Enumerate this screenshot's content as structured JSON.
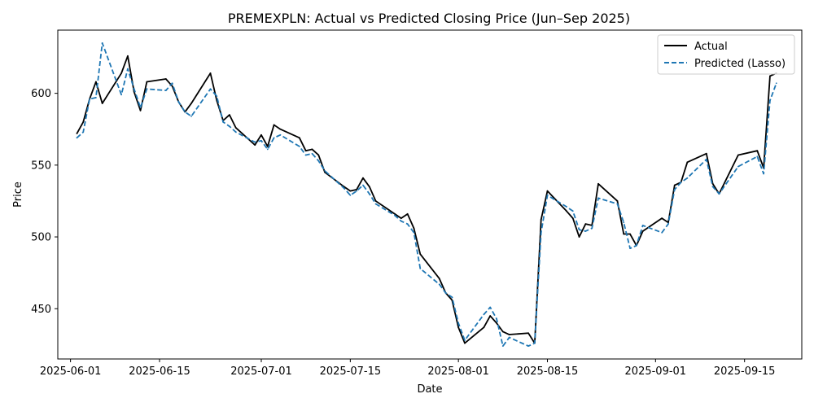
{
  "colors": {
    "actual": "#000000",
    "predicted": "#1f77b4",
    "axes": "#000000",
    "background": "#ffffff",
    "legend_border": "#cccccc"
  },
  "chart_data": {
    "type": "line",
    "title": "PREMEXPLN: Actual vs Predicted Closing Price (Jun–Sep 2025)",
    "xlabel": "Date",
    "ylabel": "Price",
    "xlim": [
      "2025-05-30",
      "2025-09-24"
    ],
    "ylim": [
      415,
      644
    ],
    "x_ticks": [
      "2025-06-01",
      "2025-06-15",
      "2025-07-01",
      "2025-07-15",
      "2025-08-01",
      "2025-08-15",
      "2025-09-01",
      "2025-09-15"
    ],
    "y_ticks": [
      450,
      500,
      550,
      600
    ],
    "grid": false,
    "legend": {
      "position": "top-right",
      "entries": [
        "Actual",
        "Predicted (Lasso)"
      ]
    },
    "series": [
      {
        "name": "Actual",
        "style": "solid",
        "points": [
          [
            "2025-06-02",
            572
          ],
          [
            "2025-06-03",
            580
          ],
          [
            "2025-06-04",
            596
          ],
          [
            "2025-06-05",
            608
          ],
          [
            "2025-06-06",
            593
          ],
          [
            "2025-06-09",
            614
          ],
          [
            "2025-06-10",
            626
          ],
          [
            "2025-06-11",
            601
          ],
          [
            "2025-06-12",
            588
          ],
          [
            "2025-06-13",
            608
          ],
          [
            "2025-06-16",
            610
          ],
          [
            "2025-06-17",
            605
          ],
          [
            "2025-06-18",
            594
          ],
          [
            "2025-06-19",
            587
          ],
          [
            "2025-06-20",
            593
          ],
          [
            "2025-06-23",
            614
          ],
          [
            "2025-06-24",
            595
          ],
          [
            "2025-06-25",
            581
          ],
          [
            "2025-06-26",
            585
          ],
          [
            "2025-06-27",
            576
          ],
          [
            "2025-06-30",
            564
          ],
          [
            "2025-07-01",
            571
          ],
          [
            "2025-07-02",
            563
          ],
          [
            "2025-07-03",
            578
          ],
          [
            "2025-07-04",
            575
          ],
          [
            "2025-07-07",
            569
          ],
          [
            "2025-07-08",
            560
          ],
          [
            "2025-07-09",
            561
          ],
          [
            "2025-07-10",
            557
          ],
          [
            "2025-07-11",
            545
          ],
          [
            "2025-07-14",
            535
          ],
          [
            "2025-07-15",
            532
          ],
          [
            "2025-07-16",
            533
          ],
          [
            "2025-07-17",
            541
          ],
          [
            "2025-07-18",
            535
          ],
          [
            "2025-07-19",
            525
          ],
          [
            "2025-07-22",
            516
          ],
          [
            "2025-07-23",
            513
          ],
          [
            "2025-07-24",
            516
          ],
          [
            "2025-07-25",
            506
          ],
          [
            "2025-07-26",
            488
          ],
          [
            "2025-07-29",
            471
          ],
          [
            "2025-07-30",
            461
          ],
          [
            "2025-07-31",
            456
          ],
          [
            "2025-08-01",
            437
          ],
          [
            "2025-08-02",
            426
          ],
          [
            "2025-08-05",
            437
          ],
          [
            "2025-08-06",
            445
          ],
          [
            "2025-08-07",
            440
          ],
          [
            "2025-08-08",
            434
          ],
          [
            "2025-08-09",
            432
          ],
          [
            "2025-08-12",
            433
          ],
          [
            "2025-08-13",
            426
          ],
          [
            "2025-08-14",
            512
          ],
          [
            "2025-08-15",
            532
          ],
          [
            "2025-08-18",
            518
          ],
          [
            "2025-08-19",
            513
          ],
          [
            "2025-08-20",
            500
          ],
          [
            "2025-08-21",
            509
          ],
          [
            "2025-08-22",
            508
          ],
          [
            "2025-08-23",
            537
          ],
          [
            "2025-08-26",
            525
          ],
          [
            "2025-08-27",
            502
          ],
          [
            "2025-08-28",
            502
          ],
          [
            "2025-08-29",
            494
          ],
          [
            "2025-08-30",
            504
          ],
          [
            "2025-09-02",
            513
          ],
          [
            "2025-09-03",
            510
          ],
          [
            "2025-09-04",
            536
          ],
          [
            "2025-09-05",
            538
          ],
          [
            "2025-09-06",
            552
          ],
          [
            "2025-09-09",
            558
          ],
          [
            "2025-09-10",
            537
          ],
          [
            "2025-09-11",
            530
          ],
          [
            "2025-09-14",
            557
          ],
          [
            "2025-09-17",
            560
          ],
          [
            "2025-09-18",
            548
          ],
          [
            "2025-09-19",
            612
          ],
          [
            "2025-09-20",
            614
          ]
        ]
      },
      {
        "name": "Predicted (Lasso)",
        "style": "dashed",
        "points": [
          [
            "2025-06-02",
            569
          ],
          [
            "2025-06-03",
            573
          ],
          [
            "2025-06-04",
            596
          ],
          [
            "2025-06-05",
            597
          ],
          [
            "2025-06-06",
            635
          ],
          [
            "2025-06-09",
            599
          ],
          [
            "2025-06-10",
            617
          ],
          [
            "2025-06-11",
            603
          ],
          [
            "2025-06-12",
            590
          ],
          [
            "2025-06-13",
            603
          ],
          [
            "2025-06-16",
            602
          ],
          [
            "2025-06-17",
            607
          ],
          [
            "2025-06-18",
            594
          ],
          [
            "2025-06-19",
            587
          ],
          [
            "2025-06-20",
            584
          ],
          [
            "2025-06-23",
            603
          ],
          [
            "2025-06-24",
            598
          ],
          [
            "2025-06-25",
            580
          ],
          [
            "2025-06-26",
            577
          ],
          [
            "2025-06-27",
            573
          ],
          [
            "2025-06-30",
            566
          ],
          [
            "2025-07-01",
            567
          ],
          [
            "2025-07-02",
            561
          ],
          [
            "2025-07-03",
            569
          ],
          [
            "2025-07-04",
            571
          ],
          [
            "2025-07-07",
            563
          ],
          [
            "2025-07-08",
            557
          ],
          [
            "2025-07-09",
            558
          ],
          [
            "2025-07-10",
            553
          ],
          [
            "2025-07-11",
            546
          ],
          [
            "2025-07-14",
            534
          ],
          [
            "2025-07-15",
            529
          ],
          [
            "2025-07-16",
            532
          ],
          [
            "2025-07-17",
            536
          ],
          [
            "2025-07-18",
            530
          ],
          [
            "2025-07-19",
            523
          ],
          [
            "2025-07-22",
            515
          ],
          [
            "2025-07-23",
            511
          ],
          [
            "2025-07-24",
            509
          ],
          [
            "2025-07-25",
            503
          ],
          [
            "2025-07-26",
            478
          ],
          [
            "2025-07-29",
            467
          ],
          [
            "2025-07-30",
            461
          ],
          [
            "2025-07-31",
            458
          ],
          [
            "2025-08-01",
            440
          ],
          [
            "2025-08-02",
            428
          ],
          [
            "2025-08-05",
            446
          ],
          [
            "2025-08-06",
            451
          ],
          [
            "2025-08-07",
            443
          ],
          [
            "2025-08-08",
            424
          ],
          [
            "2025-08-09",
            430
          ],
          [
            "2025-08-12",
            424
          ],
          [
            "2025-08-13",
            426
          ],
          [
            "2025-08-14",
            503
          ],
          [
            "2025-08-15",
            529
          ],
          [
            "2025-08-18",
            521
          ],
          [
            "2025-08-19",
            518
          ],
          [
            "2025-08-20",
            505
          ],
          [
            "2025-08-21",
            504
          ],
          [
            "2025-08-22",
            506
          ],
          [
            "2025-08-23",
            527
          ],
          [
            "2025-08-26",
            523
          ],
          [
            "2025-08-27",
            510
          ],
          [
            "2025-08-28",
            492
          ],
          [
            "2025-08-29",
            494
          ],
          [
            "2025-08-30",
            508
          ],
          [
            "2025-09-02",
            503
          ],
          [
            "2025-09-03",
            509
          ],
          [
            "2025-09-04",
            533
          ],
          [
            "2025-09-05",
            538
          ],
          [
            "2025-09-06",
            541
          ],
          [
            "2025-09-09",
            554
          ],
          [
            "2025-09-10",
            535
          ],
          [
            "2025-09-11",
            530
          ],
          [
            "2025-09-14",
            549
          ],
          [
            "2025-09-17",
            556
          ],
          [
            "2025-09-18",
            544
          ],
          [
            "2025-09-19",
            595
          ],
          [
            "2025-09-20",
            607
          ]
        ]
      }
    ]
  }
}
